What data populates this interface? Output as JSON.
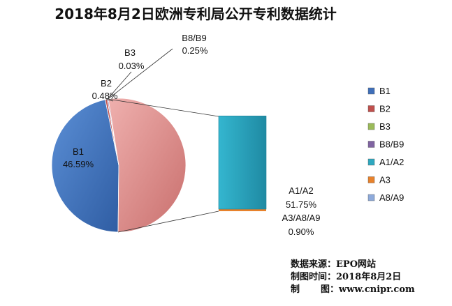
{
  "chart_data": {
    "type": "pie",
    "subtype": "bar-of-pie",
    "title": "2018年8月2日欧洲专利局公开专利数据统计",
    "slices": [
      {
        "name": "B1",
        "value": 46.59,
        "label": "46.59%",
        "color": "#3f6fb9"
      },
      {
        "name": "B2",
        "value": 0.48,
        "label": "0.48%",
        "color": "#c0504d"
      },
      {
        "name": "B3",
        "value": 0.03,
        "label": "0.03%",
        "color": "#9bbb59"
      },
      {
        "name": "B8/B9",
        "value": 0.25,
        "label": "0.25%",
        "color": "#8064a2"
      },
      {
        "name": "A1/A2",
        "value": 51.75,
        "label": "51.75%",
        "color": "#d98c8c",
        "in_bar": true
      },
      {
        "name": "A3",
        "value": 0.9,
        "label": "",
        "color": "#f79646",
        "in_bar": true
      },
      {
        "name": "A8/A9",
        "value": 0,
        "label": "",
        "color": "#8eaadb",
        "in_bar": true
      }
    ],
    "combined_label": {
      "name": "A1/A2",
      "value": "51.75%"
    },
    "other_label": {
      "name": "A3/A8/A9",
      "value": "0.90%"
    },
    "legend": {
      "position": "right",
      "entries": [
        {
          "name": "B1",
          "color": "#3f6fb9"
        },
        {
          "name": "B2",
          "color": "#c0504d"
        },
        {
          "name": "B3",
          "color": "#9bbb59"
        },
        {
          "name": "B8/B9",
          "color": "#8064a2"
        },
        {
          "name": "A1/A2",
          "color": "#2ea8c0"
        },
        {
          "name": "A3",
          "color": "#e8822c"
        },
        {
          "name": "A8/A9",
          "color": "#8eaadb"
        }
      ]
    },
    "bar_colors": {
      "A1/A2": "#2ea8c0",
      "A3": "#e8822c"
    }
  },
  "source": {
    "data_source_label": "数据来源：",
    "data_source_value": "EPO网站",
    "date_label": "制图时间：",
    "date_value": "2018年8月2日",
    "maker_label_1": "制",
    "maker_label_2": "图：",
    "maker_value": "www.cnipr.com"
  }
}
